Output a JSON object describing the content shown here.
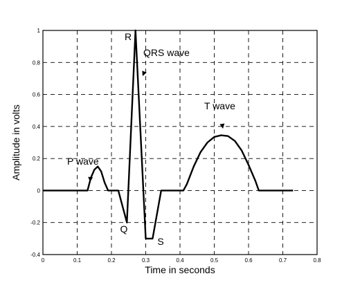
{
  "chart_data": {
    "type": "line",
    "title": "",
    "xlabel": "Time in seconds",
    "ylabel": "Amplitude in volts",
    "xlim": [
      0,
      0.8
    ],
    "ylim": [
      -0.4,
      1.0
    ],
    "grid": true,
    "x_ticks": [
      0,
      0.1,
      0.2,
      0.3,
      0.4,
      0.5,
      0.6,
      0.7,
      0.8
    ],
    "y_ticks": [
      -0.4,
      -0.2,
      0,
      0.2,
      0.4,
      0.6,
      0.8,
      1
    ],
    "x_tick_labels": [
      "0",
      "0.1",
      "0.2",
      "0.3",
      "0.4",
      "0.5",
      "0.6",
      "0.7",
      "0.8"
    ],
    "y_tick_labels": [
      "-0.4",
      "-0.2",
      "0",
      "0.2",
      "0.4",
      "0.6",
      "0.8",
      "1"
    ],
    "series": [
      {
        "x": [
          0,
          0.13,
          0.14,
          0.15,
          0.16,
          0.17,
          0.18,
          0.19,
          0.2,
          0.22,
          0.245,
          0.27,
          0.3,
          0.32,
          0.345,
          0.37,
          0.41,
          0.42,
          0.44,
          0.46,
          0.48,
          0.5,
          0.52,
          0.54,
          0.56,
          0.58,
          0.6,
          0.62,
          0.63,
          0.66,
          0.73
        ],
        "y": [
          0,
          0,
          0.08,
          0.13,
          0.15,
          0.12,
          0.05,
          0,
          0,
          0,
          -0.2,
          1.0,
          -0.3,
          -0.3,
          0,
          0,
          0,
          0.04,
          0.15,
          0.24,
          0.3,
          0.335,
          0.345,
          0.34,
          0.31,
          0.25,
          0.16,
          0.06,
          0,
          0,
          0
        ]
      }
    ],
    "annotations": [
      {
        "text": "P wave",
        "x": 0.15,
        "y": 0.15
      },
      {
        "text": "QRS wave",
        "x": 0.265,
        "y": 0.72
      },
      {
        "text": "T wave",
        "x": 0.52,
        "y": 0.36
      },
      {
        "text": "R",
        "x": 0.27,
        "y": 1.0
      },
      {
        "text": "Q",
        "x": 0.245,
        "y": -0.2
      },
      {
        "text": "S",
        "x": 0.32,
        "y": -0.3
      }
    ]
  }
}
